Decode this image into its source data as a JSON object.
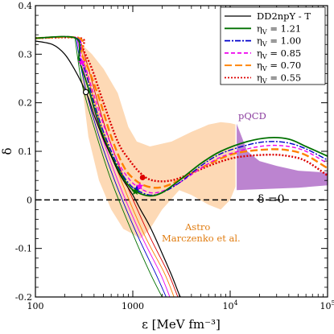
{
  "chart_data": {
    "type": "line",
    "x_scale": "log",
    "xlim": [
      100,
      100000
    ],
    "ylim": [
      -0.2,
      0.4
    ],
    "xlabel": "ε [MeV fm⁻³]",
    "ylabel": "δ",
    "x_ticks": [
      {
        "value": 100,
        "base": "100",
        "exp": ""
      },
      {
        "value": 1000,
        "base": "1000",
        "exp": ""
      },
      {
        "value": 10000,
        "base": "10",
        "exp": "4"
      },
      {
        "value": 100000,
        "base": "10",
        "exp": "5"
      }
    ],
    "y_ticks": [
      "-0.2",
      "-0.1",
      "0",
      "0.1",
      "0.2",
      "0.3",
      "0.4"
    ],
    "legend": {
      "position": "top-right",
      "entries": [
        {
          "label": "DD2npY - T",
          "sub": "",
          "val": "",
          "color": "#000000",
          "dash": ""
        },
        {
          "label": "η",
          "sub": "V",
          "val": " = 1.21",
          "color": "#007000",
          "dash": ""
        },
        {
          "label": "η",
          "sub": "V",
          "val": " = 1.00",
          "color": "#0000cc",
          "dash": "7,2,2,2"
        },
        {
          "label": "η",
          "sub": "V",
          "val": " = 0.85",
          "color": "#ee00ee",
          "dash": "5,3"
        },
        {
          "label": "η",
          "sub": "V",
          "val": " = 0.70",
          "color": "#ff8000",
          "dash": "9,4"
        },
        {
          "label": "η",
          "sub": "V",
          "val": " = 0.55",
          "color": "#dd0000",
          "dash": "2,2"
        }
      ]
    },
    "annotations": {
      "pqcd": "pQCD",
      "zero_line": "δ =0",
      "astro_1": "Astro",
      "astro_2": "Marczenko et al."
    },
    "bands": {
      "astro": {
        "color": "#fdd9b5",
        "upper": [
          [
            300,
            0.32
          ],
          [
            380,
            0.3
          ],
          [
            500,
            0.27
          ],
          [
            700,
            0.22
          ],
          [
            900,
            0.15
          ],
          [
            1100,
            0.12
          ],
          [
            1500,
            0.11
          ],
          [
            2500,
            0.12
          ],
          [
            4000,
            0.14
          ],
          [
            6000,
            0.155
          ],
          [
            8000,
            0.16
          ],
          [
            10000,
            0.158
          ],
          [
            11500,
            0.155
          ]
        ],
        "lower": [
          [
            11500,
            0.03
          ],
          [
            10000,
            0.0
          ],
          [
            8000,
            -0.02
          ],
          [
            6000,
            -0.01
          ],
          [
            4000,
            0.01
          ],
          [
            3000,
            0.02
          ],
          [
            2000,
            -0.02
          ],
          [
            1500,
            -0.06
          ],
          [
            1200,
            -0.08
          ],
          [
            1000,
            -0.07
          ],
          [
            800,
            -0.06
          ],
          [
            600,
            -0.02
          ],
          [
            450,
            0.04
          ],
          [
            350,
            0.13
          ],
          [
            300,
            0.24
          ]
        ]
      },
      "pqcd": {
        "color": "#b06ec8",
        "upper": [
          [
            11500,
            0.16
          ],
          [
            15000,
            0.1
          ],
          [
            20000,
            0.08
          ],
          [
            30000,
            0.07
          ],
          [
            50000,
            0.06
          ],
          [
            100000,
            0.056
          ]
        ],
        "lower": [
          [
            100000,
            0.03
          ],
          [
            50000,
            0.025
          ],
          [
            20000,
            0.022
          ],
          [
            11500,
            0.02
          ]
        ]
      }
    },
    "series": [
      {
        "name": "DD2npY - T",
        "color": "#000000",
        "width": 1.2,
        "dash": "",
        "points": [
          [
            100,
            0.327
          ],
          [
            150,
            0.32
          ],
          [
            200,
            0.3
          ],
          [
            250,
            0.27
          ],
          [
            300,
            0.24
          ],
          [
            350,
            0.21
          ],
          [
            400,
            0.175
          ],
          [
            500,
            0.125
          ],
          [
            600,
            0.09
          ],
          [
            700,
            0.06
          ],
          [
            800,
            0.04
          ],
          [
            1000,
            0.01
          ],
          [
            1200,
            -0.02
          ],
          [
            1500,
            -0.055
          ],
          [
            2000,
            -0.11
          ],
          [
            2500,
            -0.155
          ],
          [
            3000,
            -0.195
          ],
          [
            3100,
            -0.2
          ]
        ]
      },
      {
        "name": "η_V = 1.21",
        "color": "#007000",
        "width": 1.8,
        "dash": "",
        "points": [
          [
            100,
            0.333
          ],
          [
            260,
            0.333
          ],
          [
            280,
            0.29
          ],
          [
            300,
            0.27
          ],
          [
            350,
            0.23
          ],
          [
            400,
            0.19
          ],
          [
            500,
            0.13
          ],
          [
            700,
            0.065
          ],
          [
            900,
            0.03
          ],
          [
            1100,
            0.016
          ],
          [
            1500,
            0.008
          ],
          [
            2000,
            0.015
          ],
          [
            3000,
            0.04
          ],
          [
            5000,
            0.075
          ],
          [
            8000,
            0.1
          ],
          [
            15000,
            0.12
          ],
          [
            25000,
            0.128
          ],
          [
            40000,
            0.125
          ],
          [
            60000,
            0.11
          ],
          [
            100000,
            0.09
          ]
        ]
      },
      {
        "name": "η_V = 1.00",
        "color": "#0000cc",
        "width": 1.4,
        "dash": "7,2,2,2",
        "points": [
          [
            100,
            0.333
          ],
          [
            265,
            0.333
          ],
          [
            285,
            0.292
          ],
          [
            320,
            0.27
          ],
          [
            400,
            0.2
          ],
          [
            500,
            0.14
          ],
          [
            700,
            0.07
          ],
          [
            900,
            0.035
          ],
          [
            1100,
            0.02
          ],
          [
            1500,
            0.01
          ],
          [
            2000,
            0.015
          ],
          [
            3000,
            0.035
          ],
          [
            5000,
            0.07
          ],
          [
            8000,
            0.095
          ],
          [
            15000,
            0.113
          ],
          [
            25000,
            0.12
          ],
          [
            40000,
            0.117
          ],
          [
            60000,
            0.105
          ],
          [
            100000,
            0.082
          ]
        ]
      },
      {
        "name": "η_V = 0.85",
        "color": "#ee00ee",
        "width": 1.4,
        "dash": "5,3",
        "points": [
          [
            100,
            0.333
          ],
          [
            270,
            0.333
          ],
          [
            290,
            0.29
          ],
          [
            330,
            0.27
          ],
          [
            400,
            0.215
          ],
          [
            500,
            0.155
          ],
          [
            700,
            0.08
          ],
          [
            900,
            0.045
          ],
          [
            1100,
            0.028
          ],
          [
            1500,
            0.015
          ],
          [
            2000,
            0.018
          ],
          [
            3000,
            0.035
          ],
          [
            5000,
            0.065
          ],
          [
            8000,
            0.088
          ],
          [
            15000,
            0.105
          ],
          [
            25000,
            0.112
          ],
          [
            40000,
            0.11
          ],
          [
            60000,
            0.1
          ],
          [
            100000,
            0.075
          ]
        ]
      },
      {
        "name": "η_V = 0.70",
        "color": "#ff8000",
        "width": 2.4,
        "dash": "9,4",
        "points": [
          [
            100,
            0.333
          ],
          [
            280,
            0.333
          ],
          [
            300,
            0.3
          ],
          [
            350,
            0.27
          ],
          [
            450,
            0.21
          ],
          [
            600,
            0.13
          ],
          [
            800,
            0.07
          ],
          [
            1000,
            0.045
          ],
          [
            1300,
            0.03
          ],
          [
            1800,
            0.025
          ],
          [
            2500,
            0.033
          ],
          [
            4000,
            0.055
          ],
          [
            7000,
            0.08
          ],
          [
            12000,
            0.097
          ],
          [
            25000,
            0.104
          ],
          [
            40000,
            0.102
          ],
          [
            60000,
            0.092
          ],
          [
            100000,
            0.065
          ]
        ]
      },
      {
        "name": "η_V = 0.55",
        "color": "#dd0000",
        "width": 2.4,
        "dash": "2,2",
        "points": [
          [
            100,
            0.333
          ],
          [
            290,
            0.333
          ],
          [
            310,
            0.31
          ],
          [
            380,
            0.27
          ],
          [
            500,
            0.2
          ],
          [
            700,
            0.12
          ],
          [
            900,
            0.085
          ],
          [
            1200,
            0.055
          ],
          [
            1600,
            0.04
          ],
          [
            2500,
            0.04
          ],
          [
            4000,
            0.055
          ],
          [
            7000,
            0.075
          ],
          [
            12000,
            0.088
          ],
          [
            25000,
            0.093
          ],
          [
            40000,
            0.09
          ],
          [
            60000,
            0.08
          ],
          [
            100000,
            0.05
          ]
        ]
      }
    ],
    "branches": [
      {
        "color": "#007000",
        "width": 0.9,
        "points": [
          [
            255,
            0.333
          ],
          [
            300,
            0.24
          ],
          [
            400,
            0.15
          ],
          [
            600,
            0.04
          ],
          [
            1000,
            -0.07
          ],
          [
            1500,
            -0.15
          ],
          [
            2000,
            -0.2
          ]
        ]
      },
      {
        "color": "#0000cc",
        "width": 0.9,
        "points": [
          [
            262,
            0.333
          ],
          [
            310,
            0.25
          ],
          [
            420,
            0.15
          ],
          [
            650,
            0.04
          ],
          [
            1100,
            -0.07
          ],
          [
            1700,
            -0.15
          ],
          [
            2200,
            -0.2
          ]
        ]
      },
      {
        "color": "#ee00ee",
        "width": 0.9,
        "points": [
          [
            268,
            0.333
          ],
          [
            320,
            0.26
          ],
          [
            450,
            0.15
          ],
          [
            700,
            0.04
          ],
          [
            1200,
            -0.07
          ],
          [
            1900,
            -0.15
          ],
          [
            2400,
            -0.2
          ]
        ]
      },
      {
        "color": "#ff8000",
        "width": 0.9,
        "points": [
          [
            275,
            0.333
          ],
          [
            330,
            0.27
          ],
          [
            480,
            0.15
          ],
          [
            760,
            0.04
          ],
          [
            1300,
            -0.07
          ],
          [
            2100,
            -0.15
          ],
          [
            2650,
            -0.2
          ]
        ]
      },
      {
        "color": "#dd0000",
        "width": 0.9,
        "points": [
          [
            285,
            0.333
          ],
          [
            340,
            0.28
          ],
          [
            520,
            0.15
          ],
          [
            830,
            0.04
          ],
          [
            1450,
            -0.07
          ],
          [
            2300,
            -0.15
          ],
          [
            2900,
            -0.2
          ]
        ]
      }
    ],
    "markers": [
      {
        "shape": "circle-open",
        "color": "#000000",
        "x": 330,
        "y": 0.222
      },
      {
        "shape": "circle",
        "color": "#dd0000",
        "x": 1260,
        "y": 0.046
      },
      {
        "shape": "star",
        "color": "#0000cc",
        "x": 1100,
        "y": 0.022
      },
      {
        "shape": "star",
        "color": "#ee00ee",
        "x": 1180,
        "y": 0.028
      },
      {
        "shape": "star",
        "color": "#007000",
        "x": 1060,
        "y": 0.017
      },
      {
        "shape": "star",
        "color": "#ee00ee",
        "x": 300,
        "y": 0.283
      }
    ],
    "vlines": [
      {
        "x": 11500,
        "color": "#ffffff"
      }
    ],
    "hlines": [
      {
        "y": 0,
        "color": "#000000",
        "dash": "7,4"
      }
    ]
  }
}
